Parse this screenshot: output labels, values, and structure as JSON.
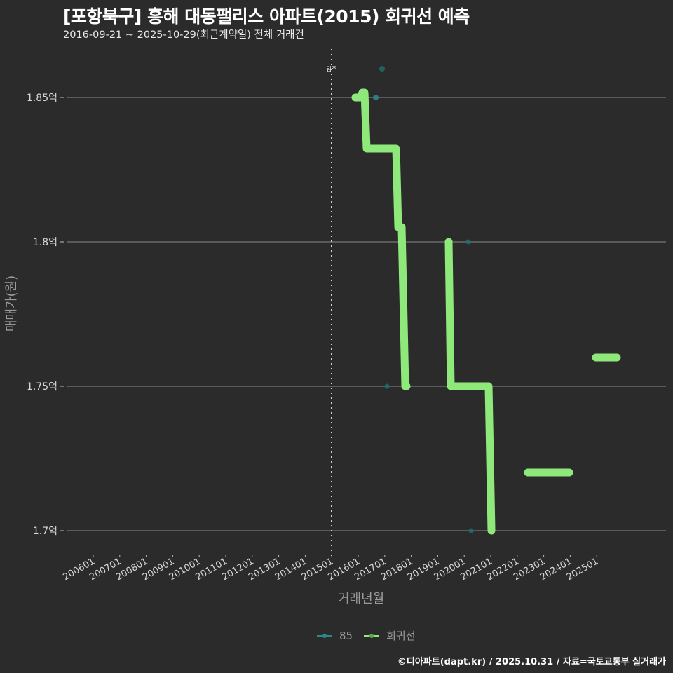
{
  "header": {
    "title": "[포항북구] 흥해 대동팰리스 아파트(2015) 회귀선 예측",
    "subtitle": "2016-09-21 ~ 2025-10-29(최근계약일) 전체 거래건"
  },
  "axes": {
    "ylabel": "매매가(원)",
    "xlabel": "거래년월"
  },
  "legend": [
    {
      "label": "85",
      "color": "#2a8a8a"
    },
    {
      "label": "회귀선",
      "color": "#8ee87a"
    }
  ],
  "footer": "©디아파트(dapt.kr) / 2025.10.31 / 자료=국토교통부 실거래가",
  "chart_data": {
    "type": "line",
    "title": "[포항북구] 흥해 대동팰리스 아파트(2015) 회귀선 예측",
    "subtitle": "2016-09-21 ~ 2025-10-29(최근계약일) 전체 거래건",
    "xlabel": "거래년월",
    "ylabel": "매매가(원)",
    "y_ticks": [
      "1.7억",
      "1.75억",
      "1.8억",
      "1.85억"
    ],
    "y_tick_values": [
      1.7,
      1.75,
      1.8,
      1.85
    ],
    "ylim": [
      1.69,
      1.867
    ],
    "x_ticks": [
      "200601",
      "200701",
      "200801",
      "200901",
      "201001",
      "201101",
      "201201",
      "201301",
      "201401",
      "201501",
      "201601",
      "201701",
      "201801",
      "201901",
      "202001",
      "202101",
      "202201",
      "202301",
      "202401",
      "202501"
    ],
    "grid": true,
    "legend_position": "bottom",
    "annotations": [
      {
        "label": "입주",
        "x": "201501",
        "style": "dotted vertical line"
      }
    ],
    "series": [
      {
        "name": "85",
        "kind": "scatter",
        "color": "#2a8a8a",
        "points": [
          {
            "x": "2016-09",
            "y": 1.86
          },
          {
            "x": "2016-10",
            "y": 1.85
          },
          {
            "x": "2016-12",
            "y": 1.75
          },
          {
            "x": "2020-05",
            "y": 1.8
          },
          {
            "x": "2020-07",
            "y": 1.7
          }
        ]
      },
      {
        "name": "회귀선",
        "kind": "line",
        "color": "#8ee87a",
        "segments": [
          [
            {
              "x": "2015-11",
              "y": 1.85
            },
            {
              "x": "2016-02",
              "y": 1.852
            },
            {
              "x": "2016-04",
              "y": 1.832
            },
            {
              "x": "2017-05",
              "y": 1.832
            },
            {
              "x": "2017-07",
              "y": 1.805
            },
            {
              "x": "2017-08",
              "y": 1.805
            },
            {
              "x": "2017-11",
              "y": 1.75
            }
          ],
          [
            {
              "x": "2019-09",
              "y": 1.8
            },
            {
              "x": "2019-11",
              "y": 1.75
            },
            {
              "x": "2020-12",
              "y": 1.75
            },
            {
              "x": "2021-01",
              "y": 1.7
            }
          ],
          [
            {
              "x": "2022-05",
              "y": 1.72
            },
            {
              "x": "2023-12",
              "y": 1.72
            }
          ],
          [
            {
              "x": "2025-01",
              "y": 1.76
            },
            {
              "x": "2025-08",
              "y": 1.76
            }
          ]
        ]
      }
    ]
  }
}
